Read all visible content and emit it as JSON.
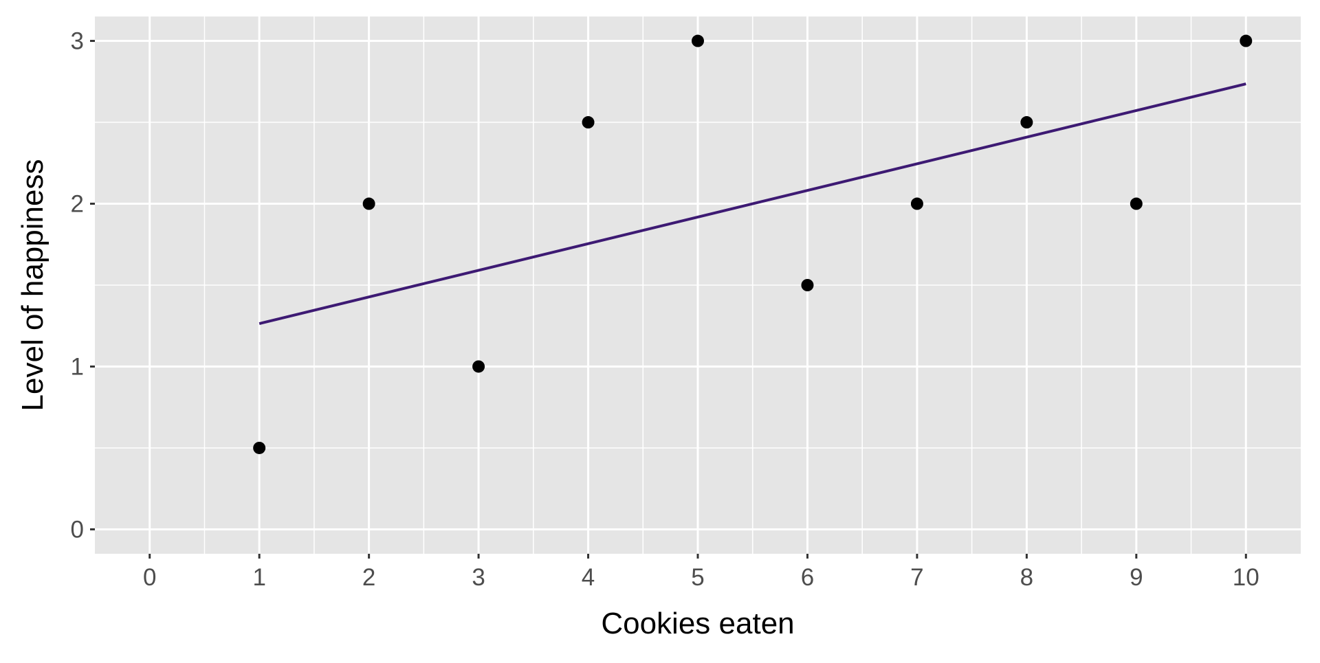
{
  "chart_data": {
    "type": "scatter",
    "title": "",
    "xlabel": "Cookies eaten",
    "ylabel": "Level of happiness",
    "x": [
      1,
      2,
      3,
      4,
      5,
      6,
      7,
      8,
      9,
      10
    ],
    "y": [
      0.5,
      2,
      1,
      2.5,
      3,
      1.5,
      2,
      2.5,
      2,
      3
    ],
    "trend_line": {
      "type": "linear",
      "x_range": [
        1,
        10
      ],
      "intercept": 1.1,
      "slope": 0.1636,
      "color": "#3d1a73"
    },
    "xlim": [
      -0.5,
      10.5
    ],
    "ylim": [
      -0.15,
      3.15
    ],
    "x_ticks": [
      "0",
      "1",
      "2",
      "3",
      "4",
      "5",
      "6",
      "7",
      "8",
      "9",
      "10"
    ],
    "y_ticks": [
      "0",
      "1",
      "2",
      "3"
    ],
    "grid": true,
    "point_color": "#000000",
    "panel_color": "#e5e5e5"
  }
}
